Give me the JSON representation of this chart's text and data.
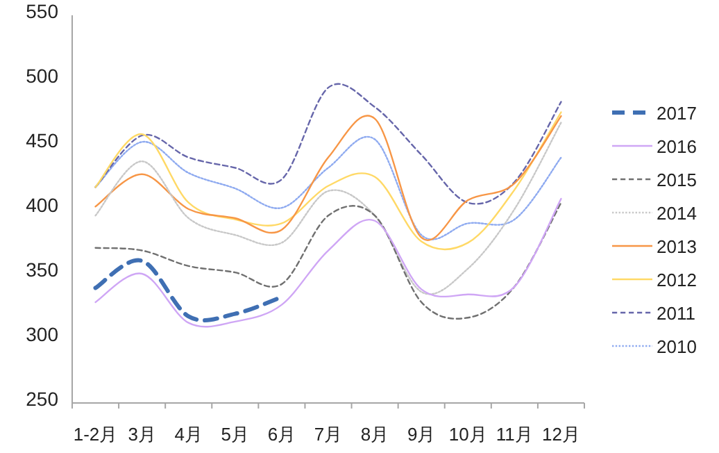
{
  "chart_data": {
    "type": "line",
    "categories": [
      "1-2月",
      "3月",
      "4月",
      "5月",
      "6月",
      "7月",
      "8月",
      "9月",
      "10月",
      "11月",
      "12月"
    ],
    "ylim": [
      250,
      550
    ],
    "yticks": [
      250,
      300,
      350,
      400,
      450,
      500,
      550
    ],
    "legend": "right",
    "grid": false,
    "series": [
      {
        "name": "2017",
        "color": "#3f6fb3",
        "line_style": "dashed",
        "values": [
          339,
          360,
          317,
          319,
          332,
          null,
          null,
          null,
          null,
          null,
          null
        ]
      },
      {
        "name": "2016",
        "color": "#cfa6f5",
        "line_style": "solid",
        "values": [
          328,
          350,
          312,
          313,
          326,
          368,
          391,
          338,
          334,
          340,
          408
        ]
      },
      {
        "name": "2015",
        "color": "#707070",
        "line_style": "dashed",
        "values": [
          370,
          368,
          356,
          351,
          342,
          395,
          395,
          328,
          316,
          340,
          405
        ]
      },
      {
        "name": "2014",
        "color": "#c8c8c8",
        "line_style": "dotted",
        "values": [
          395,
          437,
          393,
          380,
          374,
          414,
          395,
          336,
          354,
          400,
          467
        ]
      },
      {
        "name": "2013",
        "color": "#f79646",
        "line_style": "solid",
        "values": [
          402,
          427,
          400,
          393,
          384,
          440,
          470,
          378,
          407,
          420,
          472
        ]
      },
      {
        "name": "2012",
        "color": "#ffd966",
        "line_style": "solid",
        "values": [
          417,
          458,
          405,
          392,
          389,
          418,
          425,
          375,
          374,
          415,
          475
        ]
      },
      {
        "name": "2011",
        "color": "#6666aa",
        "line_style": "dashed",
        "values": [
          417,
          457,
          440,
          432,
          423,
          494,
          479,
          442,
          405,
          421,
          483
        ]
      },
      {
        "name": "2010",
        "color": "#8eaaf0",
        "line_style": "dotted",
        "values": [
          417,
          452,
          428,
          416,
          401,
          432,
          454,
          380,
          389,
          392,
          440
        ]
      }
    ]
  }
}
